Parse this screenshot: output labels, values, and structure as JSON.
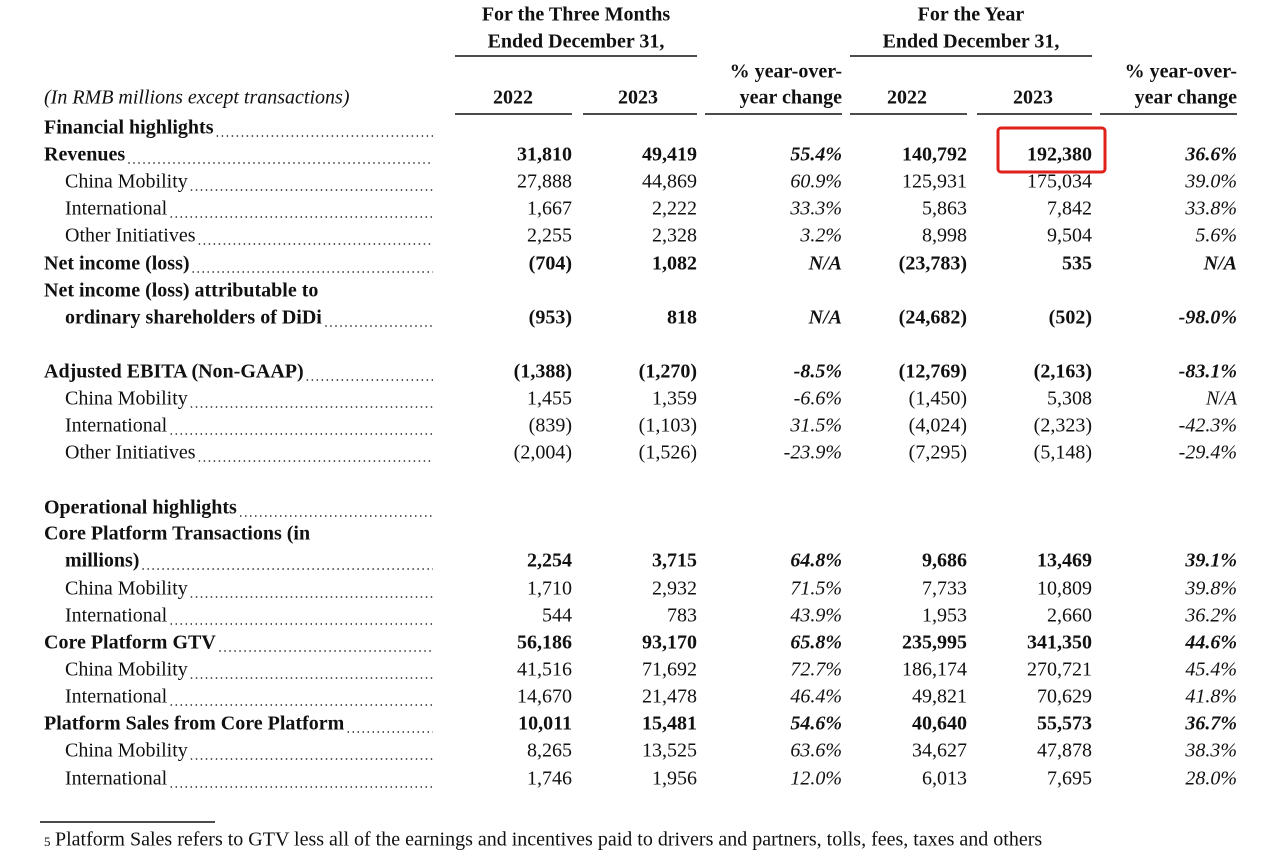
{
  "header": {
    "unit_note": "(In RMB millions except transactions)",
    "groups": [
      [
        "For the Three Months",
        "Ended December 31,"
      ],
      [
        "For the Year",
        "Ended December 31,"
      ]
    ],
    "columns": [
      [
        "2022"
      ],
      [
        "2023"
      ],
      [
        "% year-over-",
        "year change"
      ],
      [
        "2022"
      ],
      [
        "2023"
      ],
      [
        "% year-over-",
        "year change"
      ]
    ]
  },
  "table": {
    "rows": [
      {
        "label": [
          "Financial highlights"
        ],
        "values": null
      },
      {
        "label": [
          "Revenues"
        ],
        "values": [
          "31,810",
          "49,419",
          "55.4%",
          "140,792",
          "192,380",
          "36.6%"
        ]
      },
      {
        "label": [
          "China Mobility"
        ],
        "values": [
          "27,888",
          "44,869",
          "60.9%",
          "125,931",
          "175,034",
          "39.0%"
        ]
      },
      {
        "label": [
          "International"
        ],
        "values": [
          "1,667",
          "2,222",
          "33.3%",
          "5,863",
          "7,842",
          "33.8%"
        ]
      },
      {
        "label": [
          "Other Initiatives"
        ],
        "values": [
          "2,255",
          "2,328",
          "3.2%",
          "8,998",
          "9,504",
          "5.6%"
        ]
      },
      {
        "label": [
          "Net income (loss)"
        ],
        "values": [
          "(704)",
          "1,082",
          "N/A",
          "(23,783)",
          "535",
          "N/A"
        ]
      },
      {
        "label": [
          "Net income (loss) attributable to",
          "ordinary shareholders of DiDi"
        ],
        "values": [
          "(953)",
          "818",
          "N/A",
          "(24,682)",
          "(502)",
          "-98.0%"
        ]
      },
      {
        "label": [
          "Adjusted EBITA (Non-GAAP)"
        ],
        "values": [
          "(1,388)",
          "(1,270)",
          "-8.5%",
          "(12,769)",
          "(2,163)",
          "-83.1%"
        ]
      },
      {
        "label": [
          "China Mobility"
        ],
        "values": [
          "1,455",
          "1,359",
          "-6.6%",
          "(1,450)",
          "5,308",
          "N/A"
        ]
      },
      {
        "label": [
          "International"
        ],
        "values": [
          "(839)",
          "(1,103)",
          "31.5%",
          "(4,024)",
          "(2,323)",
          "-42.3%"
        ]
      },
      {
        "label": [
          "Other Initiatives"
        ],
        "values": [
          "(2,004)",
          "(1,526)",
          "-23.9%",
          "(7,295)",
          "(5,148)",
          "-29.4%"
        ]
      },
      {
        "label": [
          "Operational highlights"
        ],
        "values": null
      },
      {
        "label": [
          "Core Platform Transactions (in",
          "millions)"
        ],
        "values": [
          "2,254",
          "3,715",
          "64.8%",
          "9,686",
          "13,469",
          "39.1%"
        ]
      },
      {
        "label": [
          "China Mobility"
        ],
        "values": [
          "1,710",
          "2,932",
          "71.5%",
          "7,733",
          "10,809",
          "39.8%"
        ]
      },
      {
        "label": [
          "International"
        ],
        "values": [
          "544",
          "783",
          "43.9%",
          "1,953",
          "2,660",
          "36.2%"
        ]
      },
      {
        "label": [
          "Core Platform GTV"
        ],
        "values": [
          "56,186",
          "93,170",
          "65.8%",
          "235,995",
          "341,350",
          "44.6%"
        ]
      },
      {
        "label": [
          "China Mobility"
        ],
        "values": [
          "41,516",
          "71,692",
          "72.7%",
          "186,174",
          "270,721",
          "45.4%"
        ]
      },
      {
        "label": [
          "International"
        ],
        "values": [
          "14,670",
          "21,478",
          "46.4%",
          "49,821",
          "70,629",
          "41.8%"
        ]
      },
      {
        "label": [
          "Platform Sales from Core Platform"
        ],
        "values": [
          "10,011",
          "15,481",
          "54.6%",
          "40,640",
          "55,573",
          "36.7%"
        ]
      },
      {
        "label": [
          "China Mobility"
        ],
        "values": [
          "8,265",
          "13,525",
          "63.6%",
          "34,627",
          "47,878",
          "38.3%"
        ]
      },
      {
        "label": [
          "International"
        ],
        "values": [
          "1,746",
          "1,956",
          "12.0%",
          "6,013",
          "7,695",
          "28.0%"
        ]
      }
    ]
  },
  "footnote": {
    "marker": "5",
    "text": "Platform Sales refers to GTV less all of the earnings and incentives paid to drivers and partners, tolls, fees, taxes and others"
  }
}
